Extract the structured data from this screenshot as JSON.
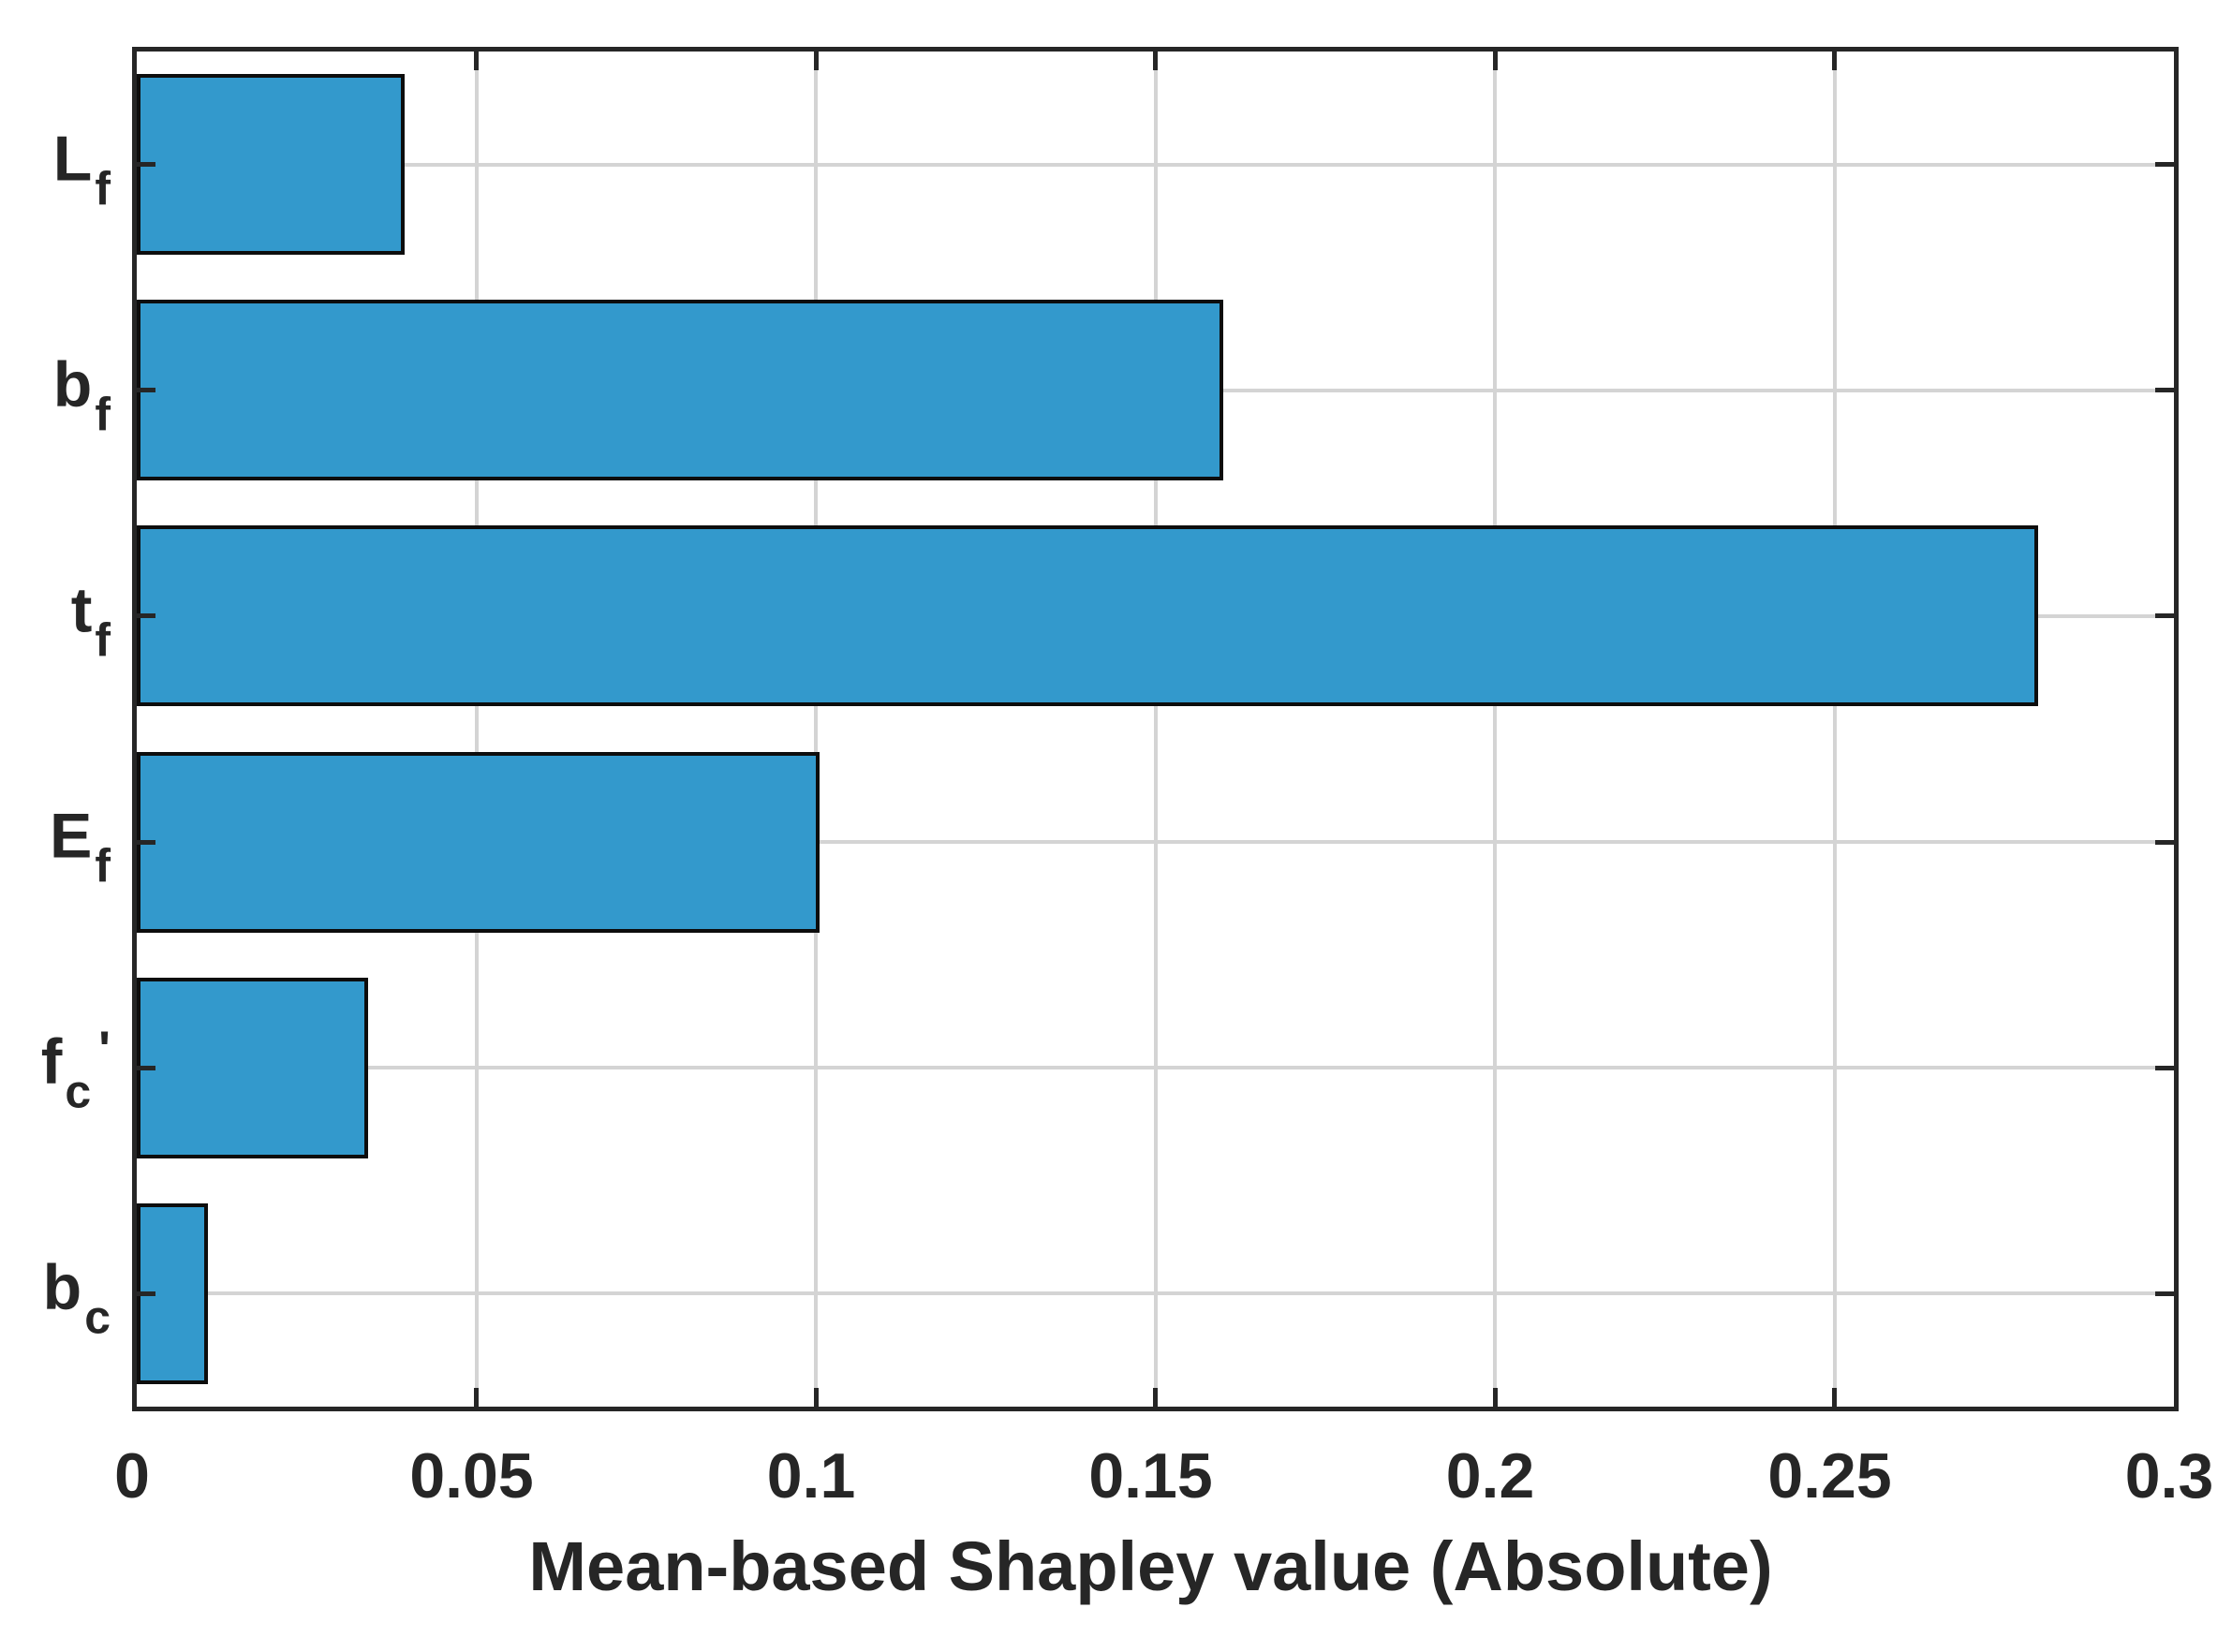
{
  "chart_data": {
    "type": "bar",
    "orientation": "horizontal",
    "title": "",
    "xlabel": "Mean-based Shapley value (Absolute)",
    "ylabel": "",
    "categories": [
      "Lf",
      "bf",
      "tf",
      "Ef",
      "fc'",
      "bc"
    ],
    "category_labels": [
      {
        "base": "L",
        "sub": "f",
        "prime": false
      },
      {
        "base": "b",
        "sub": "f",
        "prime": false
      },
      {
        "base": "t",
        "sub": "f",
        "prime": false
      },
      {
        "base": "E",
        "sub": "f",
        "prime": false
      },
      {
        "base": "f",
        "sub": "c",
        "prime": true
      },
      {
        "base": "b",
        "sub": "c",
        "prime": false
      }
    ],
    "values": [
      0.0395,
      0.16,
      0.28,
      0.1005,
      0.034,
      0.0105
    ],
    "xlim": [
      0,
      0.3
    ],
    "xticks": [
      0,
      0.05,
      0.1,
      0.15,
      0.2,
      0.25,
      0.3
    ],
    "xtick_labels": [
      "0",
      "0.05",
      "0.1",
      "0.15",
      "0.2",
      "0.25",
      "0.3"
    ],
    "grid": true,
    "legend_position": "none",
    "bar_color": "#3399CC",
    "bar_edge_color": "#0d0d0d",
    "axis_color": "#262626",
    "grid_color": "#d4d4d4",
    "bar_width_fraction": 0.8
  }
}
